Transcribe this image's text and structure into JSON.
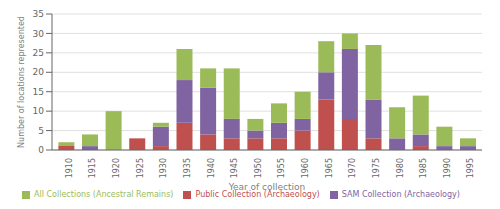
{
  "chart_data": {
    "type": "bar",
    "stacked": true,
    "xlabel": "Year of collection",
    "ylabel": "Number of locations represented",
    "x": [
      1910,
      1915,
      1920,
      1925,
      1930,
      1935,
      1940,
      1945,
      1950,
      1955,
      1960,
      1965,
      1970,
      1975,
      1980,
      1985,
      1990,
      1995
    ],
    "xlim": [
      1907,
      1998
    ],
    "xticks": [
      1910,
      1915,
      1920,
      1925,
      1930,
      1935,
      1940,
      1945,
      1950,
      1955,
      1960,
      1965,
      1970,
      1975,
      1980,
      1985,
      1990,
      1995
    ],
    "ylim": [
      0,
      35
    ],
    "yticks": [
      0,
      5,
      10,
      15,
      20,
      25,
      30,
      35
    ],
    "grid": true,
    "legend": "bottom",
    "series": [
      {
        "name": "Public Collection (Archaeology)",
        "color": "#c0504d",
        "values": [
          1,
          0,
          0,
          3,
          1,
          7,
          4,
          3,
          3,
          3,
          5,
          13,
          8,
          3,
          0,
          1,
          0,
          0
        ]
      },
      {
        "name": "SAM Collection (Archaeology)",
        "color": "#8064a2",
        "values": [
          0,
          1,
          0,
          0,
          5,
          11,
          12,
          5,
          2,
          4,
          3,
          7,
          18,
          10,
          3,
          3,
          1,
          1
        ]
      },
      {
        "name": "All Collections (Ancestral Remains)",
        "color": "#9bbb59",
        "values": [
          1,
          3,
          10,
          0,
          1,
          8,
          5,
          13,
          3,
          5,
          7,
          8,
          4,
          14,
          8,
          10,
          5,
          2
        ]
      }
    ]
  }
}
